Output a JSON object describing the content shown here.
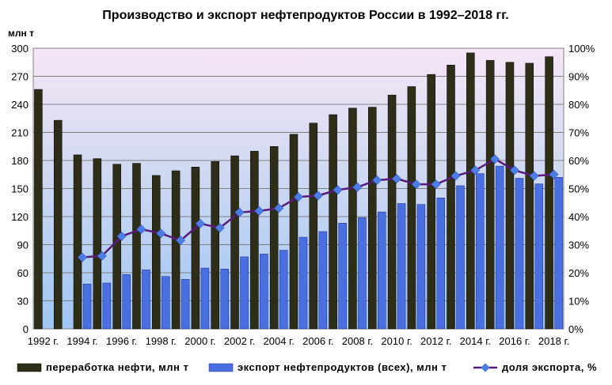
{
  "chart_data": {
    "type": "bar",
    "title": "Производство и экспорт нефтепродуктов России в 1992–2018 гг.",
    "ylabel": "млн т",
    "ylim": [
      0,
      300
    ],
    "y2lim": [
      0,
      100
    ],
    "yticks": [
      "0",
      "30",
      "60",
      "90",
      "120",
      "150",
      "180",
      "210",
      "240",
      "270",
      "300"
    ],
    "y2ticks": [
      "0%",
      "10%",
      "20%",
      "30%",
      "40%",
      "50%",
      "60%",
      "70%",
      "80%",
      "90%",
      "100%"
    ],
    "categories": [
      "1992",
      "1993",
      "1994",
      "1995",
      "1996",
      "1997",
      "1998",
      "1999",
      "2000",
      "2001",
      "2002",
      "2003",
      "2004",
      "2005",
      "2006",
      "2007",
      "2008",
      "2009",
      "2010",
      "2011",
      "2012",
      "2013",
      "2014",
      "2015",
      "2016",
      "2017",
      "2018"
    ],
    "xticklabels": [
      "1992 г.",
      "1994 г.",
      "1996 г.",
      "1998 г.",
      "2000 г.",
      "2002 г.",
      "2004 г.",
      "2006 г.",
      "2008 г.",
      "2010 г.",
      "2012 г.",
      "2014 г.",
      "2016 г.",
      "2018 г."
    ],
    "series": [
      {
        "name": "переработка нефти, млн т",
        "type": "bar",
        "color": "#2e2e18",
        "values": [
          256,
          223,
          186,
          182,
          176,
          177,
          164,
          169,
          173,
          179,
          185,
          190,
          195,
          208,
          220,
          229,
          236,
          237,
          250,
          259,
          272,
          282,
          295,
          287,
          285,
          284,
          291
        ]
      },
      {
        "name": "экспорт нефтепродуктов (всех), млн т",
        "type": "bar",
        "color": "#4a6fe0",
        "values": [
          null,
          null,
          48,
          49,
          58,
          63,
          56,
          53,
          65,
          64,
          77,
          80,
          84,
          98,
          104,
          113,
          119,
          125,
          134,
          133,
          140,
          153,
          166,
          174,
          161,
          155,
          162
        ]
      },
      {
        "name": "доля экспорта,  %",
        "type": "line",
        "axis": "right",
        "color": "#5a1a7a",
        "marker_color": "#4a7de6",
        "values": [
          null,
          null,
          25.5,
          26,
          33,
          35.5,
          34,
          31.5,
          37.5,
          36,
          41.5,
          42,
          43,
          47,
          47.5,
          49.5,
          50.5,
          53,
          53.5,
          51.5,
          51.5,
          54.5,
          56.5,
          60.5,
          56.5,
          54.5,
          55
        ]
      }
    ],
    "legend_position": "bottom",
    "grid": true
  }
}
